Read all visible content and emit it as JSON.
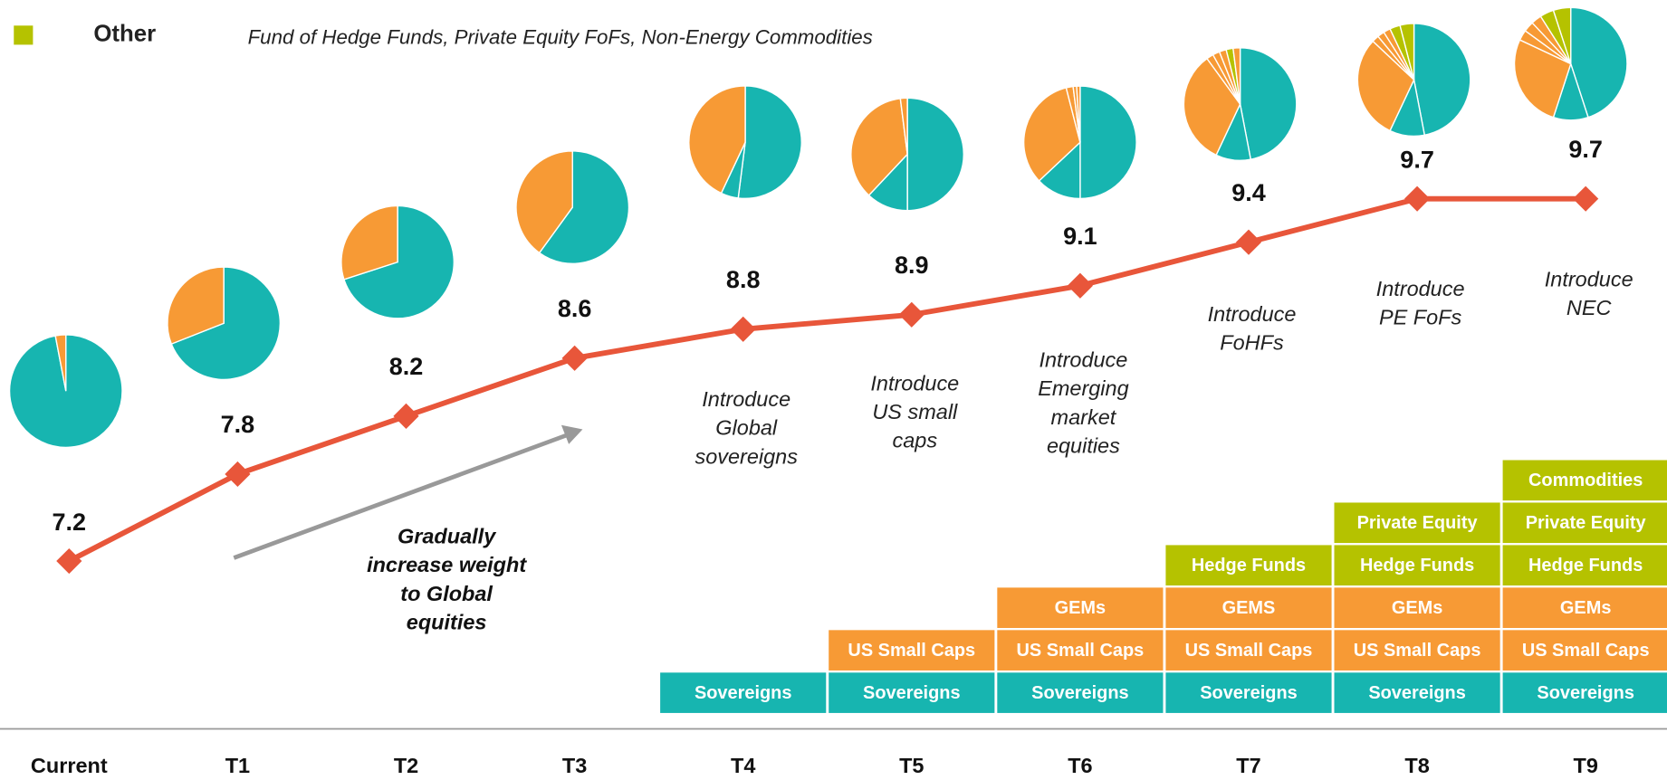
{
  "chart_data": {
    "type": "line",
    "legend": {
      "label": "Other",
      "description": "Fund of Hedge Funds, Private Equity FoFs, Non-Energy Commodities",
      "color": "#b5c200"
    },
    "categories": [
      "Current",
      "T1",
      "T2",
      "T3",
      "T4",
      "T5",
      "T6",
      "T7",
      "T8",
      "T9"
    ],
    "values": [
      7.2,
      7.8,
      8.2,
      8.6,
      8.8,
      8.9,
      9.1,
      9.4,
      9.7,
      9.7
    ],
    "color": "#e8563a",
    "notes": [
      null,
      null,
      null,
      null,
      [
        "Introduce",
        "Global",
        "sovereigns"
      ],
      [
        "Introduce",
        "US small",
        "caps"
      ],
      [
        "Introduce",
        "Emerging",
        "market",
        "equities"
      ],
      [
        "Introduce",
        "FoHFs"
      ],
      [
        "Introduce",
        "PE FoFs"
      ],
      [
        "Introduce",
        "NEC"
      ]
    ],
    "arrow_note": [
      "Gradually",
      "increase weight",
      "to Global",
      "equities"
    ],
    "pies": [
      {
        "values": [
          97,
          3
        ],
        "colors": [
          "#17b5b0",
          "#f79a35"
        ]
      },
      {
        "values": [
          69,
          31
        ],
        "colors": [
          "#17b5b0",
          "#f79a35"
        ]
      },
      {
        "values": [
          70,
          30
        ],
        "colors": [
          "#17b5b0",
          "#f79a35"
        ]
      },
      {
        "values": [
          60,
          40
        ],
        "colors": [
          "#17b5b0",
          "#f79a35"
        ]
      },
      {
        "values": [
          52,
          5,
          43
        ],
        "colors": [
          "#17b5b0",
          "#17b5b0",
          "#f79a35"
        ]
      },
      {
        "values": [
          50,
          12,
          36,
          2
        ],
        "colors": [
          "#17b5b0",
          "#17b5b0",
          "#f79a35",
          "#f79a35"
        ]
      },
      {
        "values": [
          50,
          13,
          33,
          2,
          1,
          1
        ],
        "colors": [
          "#17b5b0",
          "#17b5b0",
          "#f79a35",
          "#f79a35",
          "#f79a35",
          "#f79a35"
        ]
      },
      {
        "values": [
          47,
          10,
          33,
          2,
          2,
          2,
          2,
          2
        ],
        "colors": [
          "#17b5b0",
          "#17b5b0",
          "#f79a35",
          "#f79a35",
          "#f79a35",
          "#f79a35",
          "#b5c200",
          "#f79a35"
        ]
      },
      {
        "values": [
          47,
          10,
          30,
          2,
          2,
          2,
          3,
          4
        ],
        "colors": [
          "#17b5b0",
          "#17b5b0",
          "#f79a35",
          "#f79a35",
          "#f79a35",
          "#f79a35",
          "#b5c200",
          "#b5c200"
        ]
      },
      {
        "values": [
          45,
          10,
          27,
          3,
          3,
          3,
          4,
          5
        ],
        "colors": [
          "#17b5b0",
          "#17b5b0",
          "#f79a35",
          "#f79a35",
          "#f79a35",
          "#f79a35",
          "#b5c200",
          "#b5c200"
        ]
      }
    ],
    "stack_colors": [
      "#17b5b0",
      "#f79a35",
      "#f79a35",
      "#b5c200",
      "#b5c200",
      "#b5c200"
    ],
    "stacks": [
      [],
      [],
      [],
      [],
      [
        "Sovereigns"
      ],
      [
        "Sovereigns",
        "US Small Caps"
      ],
      [
        "Sovereigns",
        "US Small Caps",
        "GEMs"
      ],
      [
        "Sovereigns",
        "US Small Caps",
        "GEMS",
        "Hedge Funds"
      ],
      [
        "Sovereigns",
        "US Small Caps",
        "GEMs",
        "Hedge Funds",
        "Private Equity"
      ],
      [
        "Sovereigns",
        "US Small Caps",
        "GEMs",
        "Hedge Funds",
        "Private Equity",
        "Commodities"
      ]
    ]
  }
}
